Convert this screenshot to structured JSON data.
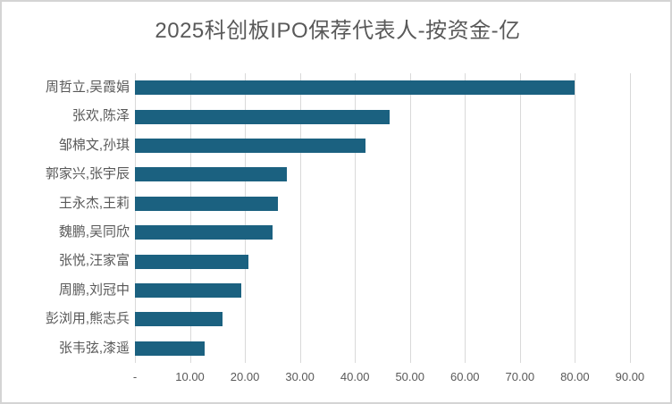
{
  "title": "2025科创板IPO保荐代表人-按资金-亿",
  "chart_data": {
    "type": "bar",
    "orientation": "horizontal",
    "title": "2025科创板IPO保荐代表人-按资金-亿",
    "categories": [
      "周哲立,吴霞娟",
      "张欢,陈泽",
      "邹棉文,孙琪",
      "郭家兴,张宇辰",
      "王永杰,王莉",
      "魏鹏,吴同欣",
      "张悦,汪家富",
      "周鹏,刘冠中",
      "彭浏用,熊志兵",
      "张韦弦,漆遥"
    ],
    "values": [
      80.0,
      46.3,
      42.0,
      27.6,
      26.0,
      25.1,
      20.6,
      19.3,
      16.0,
      12.7
    ],
    "xlabel": "",
    "ylabel": "",
    "xlim": [
      0,
      90
    ],
    "x_tick_values": [
      0,
      10,
      20,
      30,
      40,
      50,
      60,
      70,
      80,
      90
    ],
    "x_tick_labels": [
      "-",
      "10.00",
      "20.00",
      "30.00",
      "40.00",
      "50.00",
      "60.00",
      "70.00",
      "80.00",
      "90.00"
    ],
    "grid": true,
    "legend": "none",
    "bar_color": "#1B6180",
    "gridline_color": "#d9d9d9",
    "text_color": "#595959"
  }
}
